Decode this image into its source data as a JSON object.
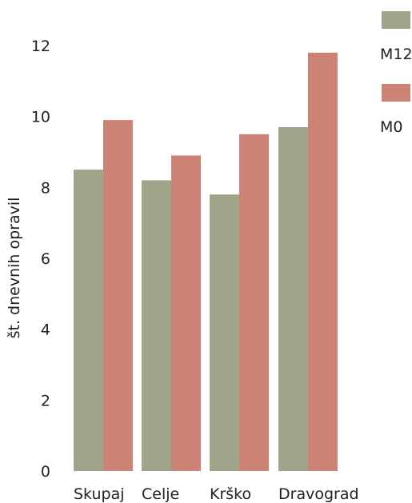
{
  "chart_data": {
    "type": "bar",
    "categories": [
      "Skupaj",
      "Celje",
      "Krško",
      "Dravograd"
    ],
    "series": [
      {
        "name": "M12",
        "color": "#a0a58a",
        "values": [
          8.5,
          8.2,
          7.8,
          9.7
        ]
      },
      {
        "name": "M0",
        "color": "#cc8275",
        "values": [
          9.9,
          8.9,
          9.5,
          11.8
        ]
      }
    ],
    "ylabel": "št. dnevnih opravil",
    "xlabel": "",
    "ylim": [
      0,
      12
    ],
    "yticks": [
      "0",
      "2",
      "4",
      "6",
      "8",
      "10",
      "12"
    ],
    "grid": false,
    "legend_position": "top-right"
  }
}
